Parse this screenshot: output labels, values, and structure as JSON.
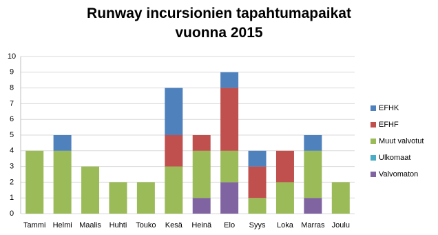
{
  "chart_data": {
    "type": "stacked_bar",
    "title": "Runway incursionien tapahtumapaikat vuonna 2015",
    "categories": [
      "Tammi",
      "Helmi",
      "Maalis",
      "Huhti",
      "Touko",
      "Kesä",
      "Heinä",
      "Elo",
      "Syys",
      "Loka",
      "Marras",
      "Joulu"
    ],
    "series": [
      {
        "name": "Valvomaton",
        "color": "#8064a2",
        "values": [
          0,
          0,
          0,
          0,
          0,
          0,
          1,
          2,
          0,
          0,
          1,
          0
        ]
      },
      {
        "name": "Ulkomaat",
        "color": "#4bacc6",
        "values": [
          0,
          0,
          0,
          0,
          0,
          0,
          0,
          0,
          0,
          0,
          0,
          0
        ]
      },
      {
        "name": "Muut valvotut",
        "color": "#9bbb59",
        "values": [
          4,
          4,
          3,
          2,
          2,
          3,
          3,
          2,
          1,
          2,
          3,
          2
        ]
      },
      {
        "name": "EFHF",
        "color": "#c0504d",
        "values": [
          0,
          0,
          0,
          0,
          0,
          2,
          1,
          4,
          2,
          2,
          0,
          0
        ]
      },
      {
        "name": "EFHK",
        "color": "#4f81bd",
        "values": [
          0,
          1,
          0,
          0,
          0,
          3,
          0,
          1,
          1,
          0,
          1,
          0
        ]
      }
    ],
    "ylim": [
      0,
      10
    ],
    "yticks": [
      0,
      1,
      2,
      3,
      4,
      5,
      6,
      7,
      8,
      9,
      10
    ],
    "grid": true
  }
}
